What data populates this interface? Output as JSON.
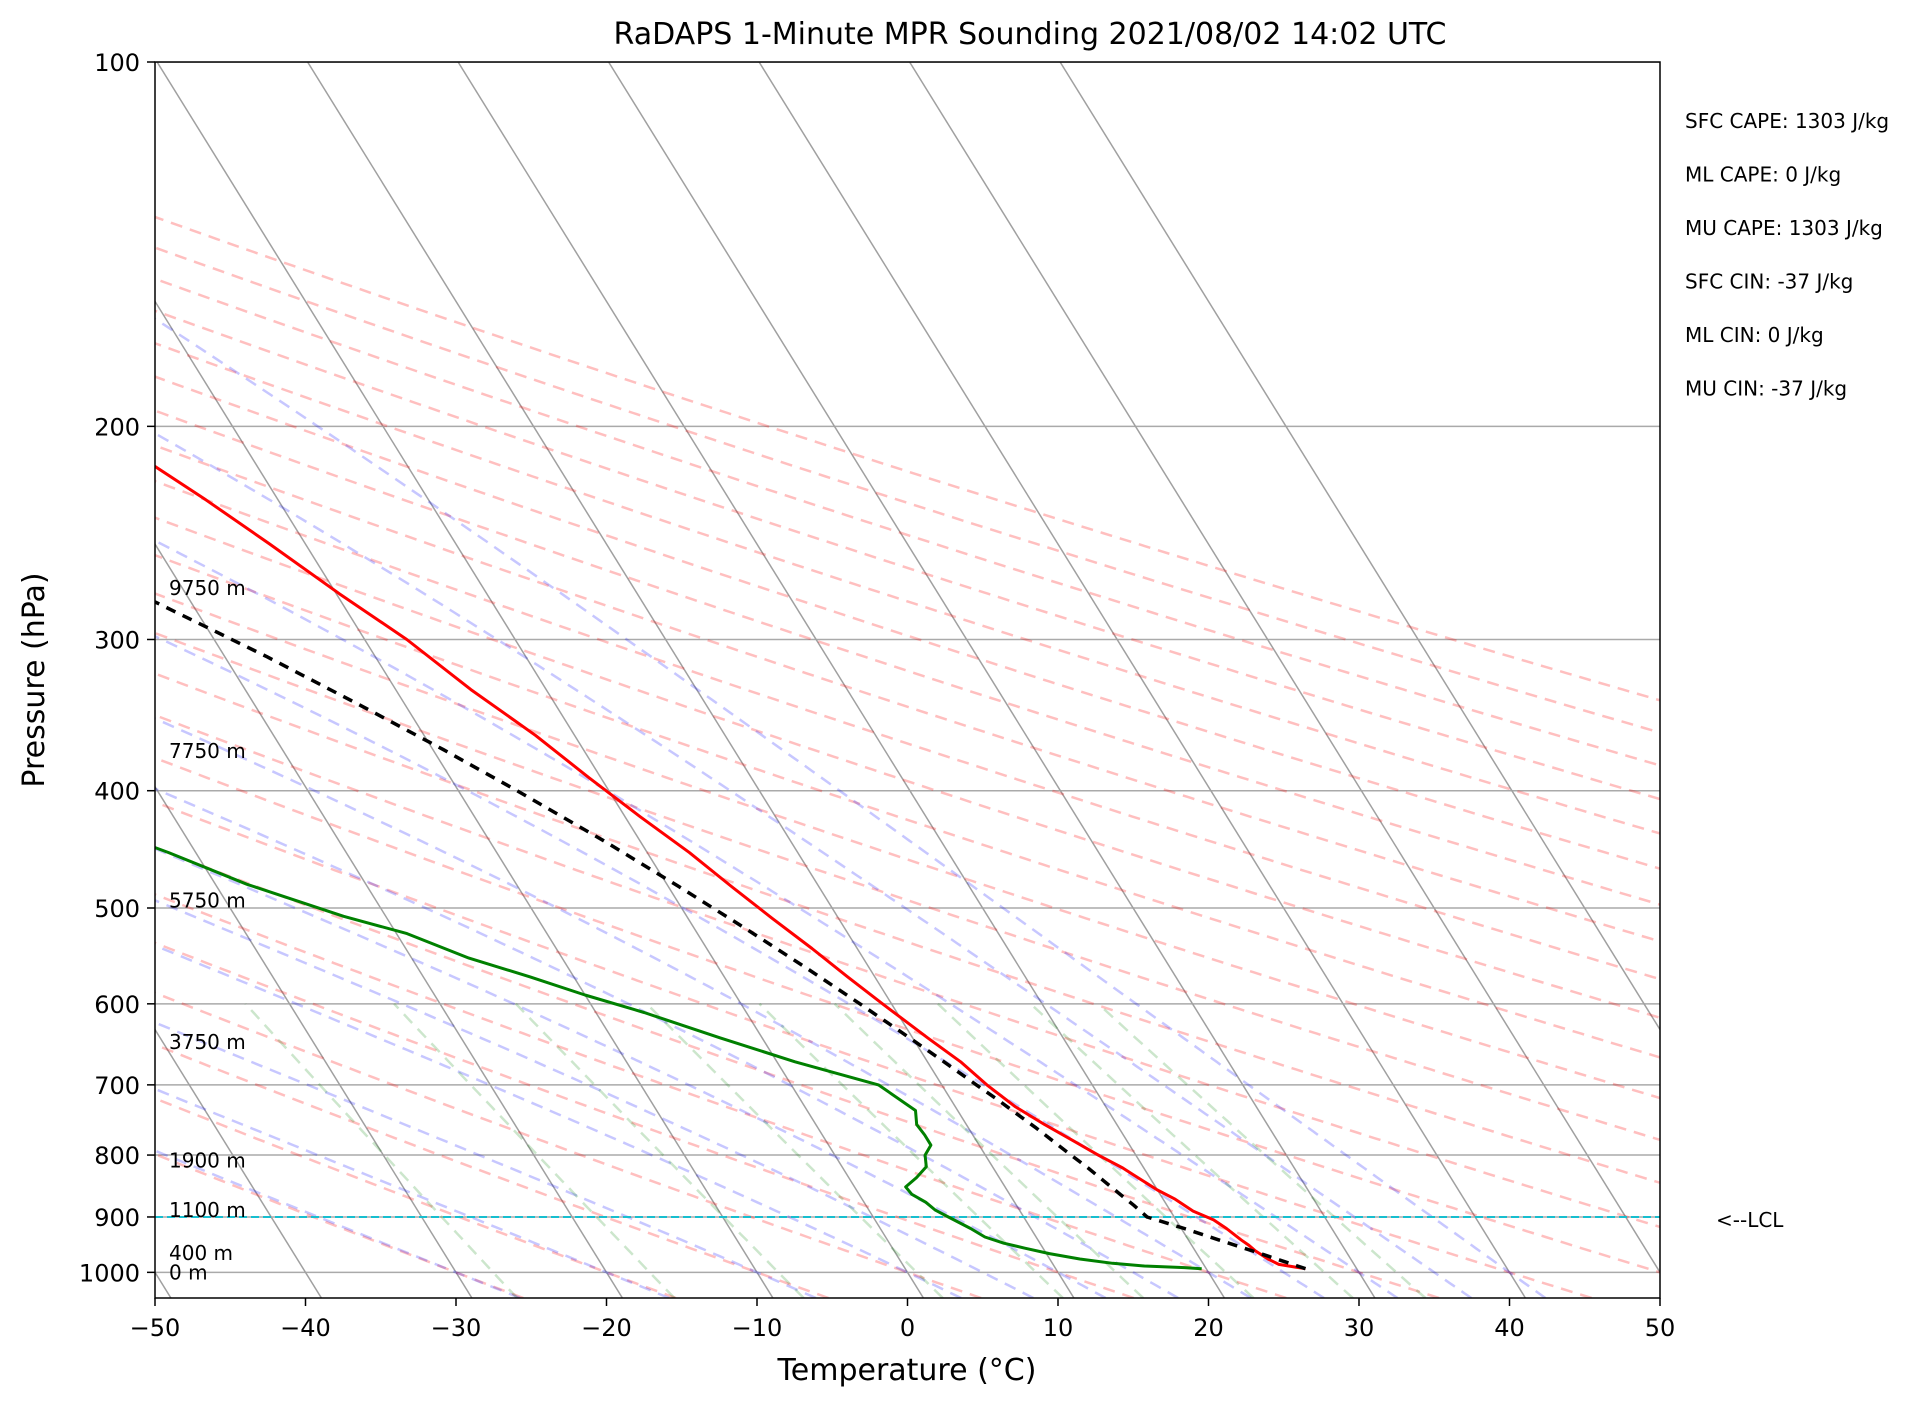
{
  "chart_data": {
    "type": "line",
    "title": "RaDAPS 1-Minute MPR Sounding 2021/08/02 14:02 UTC",
    "xlabel": "Temperature (°C)",
    "ylabel": "Pressure (hPa)",
    "xlim": [
      -50,
      50
    ],
    "ylim": [
      1050,
      100
    ],
    "yscale": "log",
    "skew": "skew-T log-P",
    "grid": true,
    "xticks": [
      "−50",
      "−40",
      "−30",
      "−20",
      "−10",
      "0",
      "10",
      "20",
      "30",
      "40",
      "50"
    ],
    "yticks": [
      "100",
      "200",
      "300",
      "400",
      "500",
      "600",
      "700",
      "800",
      "900",
      "1000"
    ],
    "indices": [
      "SFC CAPE: 1303 J/kg",
      "ML CAPE: 0 J/kg",
      "MU CAPE: 1303 J/kg",
      "SFC CIN: -37 J/kg",
      "ML CIN: 0 J/kg",
      "MU CIN: -37 J/kg"
    ],
    "lcl": {
      "label": "<--LCL",
      "pressure": 900
    },
    "height_labels": [
      {
        "text": "9750 m",
        "pressure": 272
      },
      {
        "text": "7750 m",
        "pressure": 371
      },
      {
        "text": "5750 m",
        "pressure": 493
      },
      {
        "text": "3750 m",
        "pressure": 645
      },
      {
        "text": "1900 m",
        "pressure": 808
      },
      {
        "text": "1100 m",
        "pressure": 888
      },
      {
        "text": "400 m",
        "pressure": 964
      },
      {
        "text": "0 m",
        "pressure": 1000
      }
    ],
    "series": [
      {
        "name": "temperature",
        "color": "#ff0000",
        "points": [
          [
            993,
            26.6
          ],
          [
            990,
            26.0
          ],
          [
            985,
            25.0
          ],
          [
            975,
            24.5
          ],
          [
            960,
            24.0
          ],
          [
            950,
            23.8
          ],
          [
            940,
            23.5
          ],
          [
            920,
            23.0
          ],
          [
            905,
            22.5
          ],
          [
            890,
            21.5
          ],
          [
            870,
            20.8
          ],
          [
            855,
            20.0
          ],
          [
            845,
            19.6
          ],
          [
            830,
            19.0
          ],
          [
            820,
            18.6
          ],
          [
            800,
            17.5
          ],
          [
            780,
            16.5
          ],
          [
            755,
            15.2
          ],
          [
            730,
            14.0
          ],
          [
            700,
            13.0
          ],
          [
            670,
            12.2
          ],
          [
            640,
            11.0
          ],
          [
            600,
            9.4
          ],
          [
            570,
            8.2
          ],
          [
            540,
            7.0
          ],
          [
            510,
            5.6
          ],
          [
            480,
            4.2
          ],
          [
            450,
            2.8
          ],
          [
            420,
            1.0
          ],
          [
            390,
            -0.8
          ],
          [
            360,
            -2.6
          ],
          [
            330,
            -5.0
          ],
          [
            300,
            -7.2
          ],
          [
            275,
            -9.8
          ],
          [
            250,
            -12.4
          ],
          [
            230,
            -14.8
          ],
          [
            200,
            -19.2
          ],
          [
            180,
            -23.0
          ],
          [
            160,
            -28.0
          ],
          [
            140,
            -34.0
          ],
          [
            124,
            -38.0
          ],
          [
            115,
            -41.7
          ],
          [
            108,
            -45.3
          ],
          [
            103,
            -48.9
          ],
          [
            100,
            -51.5
          ]
        ]
      },
      {
        "name": "dewpoint",
        "color": "#008000",
        "points": [
          [
            993,
            19.7
          ],
          [
            991,
            18.6
          ],
          [
            988,
            16.0
          ],
          [
            983,
            14.0
          ],
          [
            975,
            12.0
          ],
          [
            965,
            10.2
          ],
          [
            955,
            8.8
          ],
          [
            946,
            7.6
          ],
          [
            935,
            6.6
          ],
          [
            920,
            6.0
          ],
          [
            900,
            5.0
          ],
          [
            888,
            4.4
          ],
          [
            875,
            4.1
          ],
          [
            862,
            3.5
          ],
          [
            850,
            3.4
          ],
          [
            835,
            4.5
          ],
          [
            818,
            5.6
          ],
          [
            800,
            6.0
          ],
          [
            785,
            6.8
          ],
          [
            770,
            6.8
          ],
          [
            755,
            6.7
          ],
          [
            735,
            7.2
          ],
          [
            700,
            5.8
          ],
          [
            670,
            1.2
          ],
          [
            640,
            -2.8
          ],
          [
            610,
            -6.8
          ],
          [
            590,
            -10.0
          ],
          [
            570,
            -12.9
          ],
          [
            550,
            -16.2
          ],
          [
            525,
            -19.3
          ],
          [
            508,
            -22.8
          ],
          [
            478,
            -27.9
          ],
          [
            450,
            -31.8
          ],
          [
            425,
            -36.0
          ],
          [
            402,
            -40.3
          ],
          [
            380,
            -44.2
          ],
          [
            360,
            -49.0
          ],
          [
            350,
            -52.9
          ],
          [
            334,
            -57.6
          ],
          [
            305,
            -63.5
          ],
          [
            290,
            -70.9
          ],
          [
            280,
            -80.1
          ],
          [
            275,
            -91.8
          ]
        ]
      },
      {
        "name": "parcel",
        "color": "#000000",
        "style": "dashed",
        "points": [
          [
            993,
            26.6
          ],
          [
            980,
            25.5
          ],
          [
            960,
            23.8
          ],
          [
            940,
            22.0
          ],
          [
            920,
            20.2
          ],
          [
            900,
            18.2
          ],
          [
            880,
            17.8
          ],
          [
            860,
            17.3
          ],
          [
            840,
            16.8
          ],
          [
            820,
            16.3
          ],
          [
            800,
            15.7
          ],
          [
            780,
            15.1
          ],
          [
            760,
            14.5
          ],
          [
            740,
            13.8
          ],
          [
            720,
            13.1
          ],
          [
            700,
            12.3
          ],
          [
            670,
            11.1
          ],
          [
            640,
            9.8
          ],
          [
            600,
            7.9
          ],
          [
            560,
            5.8
          ],
          [
            520,
            3.4
          ],
          [
            480,
            0.7
          ],
          [
            440,
            -2.4
          ],
          [
            400,
            -6.1
          ],
          [
            370,
            -9.3
          ],
          [
            340,
            -13.0
          ],
          [
            310,
            -17.2
          ],
          [
            290,
            -20.5
          ],
          [
            272,
            -23.7
          ]
        ]
      }
    ]
  }
}
